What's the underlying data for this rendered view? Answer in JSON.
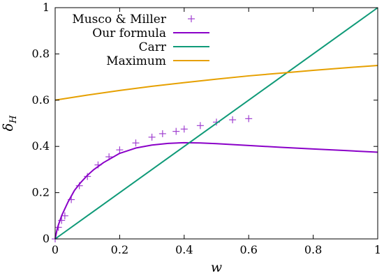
{
  "chart_data": {
    "type": "line",
    "title": "",
    "xlabel": "w",
    "ylabel_main": "δ",
    "ylabel_sub": "H",
    "xlim": [
      0,
      1
    ],
    "ylim": [
      0,
      1
    ],
    "x_ticks": [
      "0",
      "0.2",
      "0.4",
      "0.6",
      "0.8",
      "1"
    ],
    "y_ticks": [
      "0",
      "0.2",
      "0.4",
      "0.6",
      "0.8",
      "1"
    ],
    "x_tick_values": [
      0,
      0.2,
      0.4,
      0.6,
      0.8,
      1
    ],
    "y_tick_values": [
      0,
      0.2,
      0.4,
      0.6,
      0.8,
      1
    ],
    "grid": false,
    "legend_position": "top-left",
    "series": [
      {
        "name": "Musco & Miller",
        "kind": "scatter",
        "marker": "plus",
        "color": "#a040d0",
        "x": [
          0.0,
          0.01,
          0.02,
          0.03,
          0.05,
          0.075,
          0.1,
          0.133,
          0.167,
          0.2,
          0.25,
          0.3,
          0.333,
          0.375,
          0.4,
          0.45,
          0.5,
          0.55,
          0.6
        ],
        "y": [
          0.0,
          0.05,
          0.08,
          0.1,
          0.17,
          0.23,
          0.27,
          0.32,
          0.355,
          0.385,
          0.415,
          0.44,
          0.455,
          0.465,
          0.475,
          0.49,
          0.505,
          0.515,
          0.52
        ]
      },
      {
        "name": "Our formula",
        "kind": "line",
        "color": "#8a00c8",
        "x": [
          0.0,
          0.005,
          0.01,
          0.02,
          0.03,
          0.04,
          0.05,
          0.06,
          0.08,
          0.1,
          0.12,
          0.15,
          0.2,
          0.25,
          0.3,
          0.35,
          0.4,
          0.45,
          0.5,
          0.6,
          0.7,
          0.8,
          0.9,
          1.0
        ],
        "y": [
          0.0,
          0.035,
          0.06,
          0.1,
          0.13,
          0.16,
          0.185,
          0.21,
          0.245,
          0.275,
          0.3,
          0.33,
          0.37,
          0.393,
          0.406,
          0.413,
          0.416,
          0.415,
          0.412,
          0.404,
          0.396,
          0.389,
          0.382,
          0.375
        ]
      },
      {
        "name": "Carr",
        "kind": "line",
        "color": "#0f9a78",
        "x": [
          0,
          1
        ],
        "y": [
          0,
          1
        ]
      },
      {
        "name": "Maximum",
        "kind": "line",
        "color": "#e6a000",
        "x": [
          0.0,
          0.1,
          0.2,
          0.3,
          0.4,
          0.5,
          0.6,
          0.7,
          0.8,
          0.9,
          1.0
        ],
        "y": [
          0.6,
          0.622,
          0.642,
          0.66,
          0.676,
          0.691,
          0.705,
          0.717,
          0.729,
          0.74,
          0.75
        ]
      }
    ]
  }
}
